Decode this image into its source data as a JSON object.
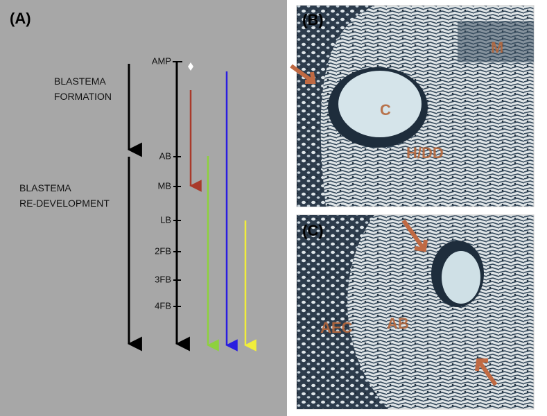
{
  "panel_a": {
    "label": "(A)",
    "phases": [
      "BLASTEMA",
      "FORMATION",
      "BLASTEMA",
      "RE-DEVELOPMENT"
    ],
    "stages": [
      "AMP",
      "AB",
      "MB",
      "LB",
      "2FB",
      "3FB",
      "4FB"
    ]
  },
  "panel_b": {
    "label": "(B)",
    "annotations": [
      "M",
      "C",
      "H/DD"
    ]
  },
  "panel_c": {
    "label": "(C)",
    "annotations": [
      "AEC",
      "AB"
    ]
  }
}
